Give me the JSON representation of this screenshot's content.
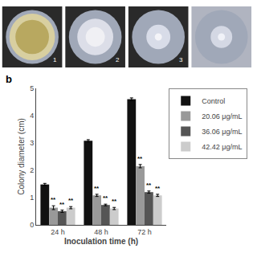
{
  "chart_data": {
    "type": "bar",
    "xlabel": "Inoculation time (h)",
    "ylabel": "Colony diameter (cm)",
    "categories": [
      "24 h",
      "48 h",
      "72 h"
    ],
    "series": [
      {
        "name": "Control",
        "color": "#111111",
        "values": [
          1.48,
          3.08,
          4.6
        ],
        "errors": [
          0.04,
          0.04,
          0.05
        ]
      },
      {
        "name": "20.06 μg/mL",
        "color": "#999999",
        "values": [
          0.63,
          1.08,
          2.15
        ],
        "errors": [
          0.07,
          0.04,
          0.06
        ]
      },
      {
        "name": "36.06 μg/mL",
        "color": "#555555",
        "values": [
          0.5,
          0.73,
          1.2
        ],
        "errors": [
          0.04,
          0.03,
          0.04
        ]
      },
      {
        "name": "42.42 μg/mL",
        "color": "#cccccc",
        "values": [
          0.63,
          0.6,
          1.08
        ],
        "errors": [
          0.04,
          0.04,
          0.04
        ]
      }
    ],
    "ylim": [
      0,
      5
    ],
    "yticks": [
      0,
      1,
      2,
      3,
      4,
      5
    ],
    "grid": false,
    "legend": "right",
    "annotations": [
      {
        "text": "**",
        "category": "24 h",
        "series": "20.06 μg/mL"
      },
      {
        "text": "**",
        "category": "48 h",
        "series": "20.06 μg/mL"
      },
      {
        "text": "**",
        "category": "72 h",
        "series": "20.06 μg/mL"
      },
      {
        "text": "**",
        "category": "24 h",
        "series": "36.06 μg/mL"
      },
      {
        "text": "**",
        "category": "48 h",
        "series": "36.06 μg/mL"
      },
      {
        "text": "**",
        "category": "72 h",
        "series": "36.06 μg/mL"
      },
      {
        "text": "**",
        "category": "24 h",
        "series": "42.42 μg/mL"
      },
      {
        "text": "**",
        "category": "48 h",
        "series": "42.42 μg/mL"
      },
      {
        "text": "**",
        "category": "72 h",
        "series": "42.42 μg/mL"
      }
    ],
    "panel_label": "b",
    "image_labels": [
      "1",
      "2",
      "3",
      null
    ]
  }
}
